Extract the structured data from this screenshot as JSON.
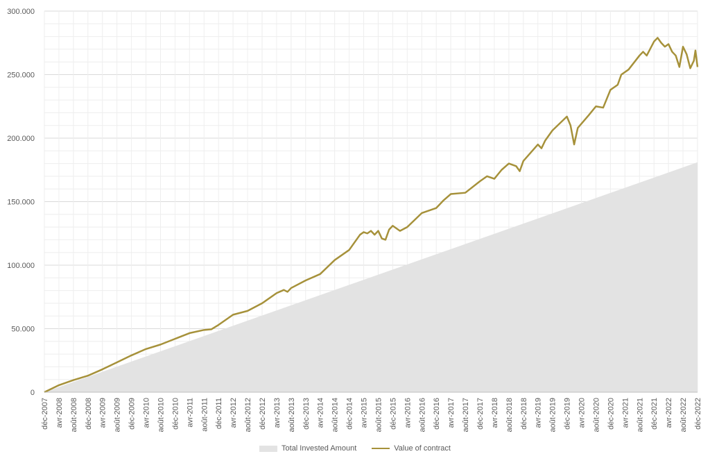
{
  "colors": {
    "area": "#e3e3e3",
    "line": "#a6913a",
    "grid": "#d9d9d9",
    "minor_grid": "#eeeeee",
    "text": "#595959"
  },
  "chart_data": {
    "type": "line",
    "grid": true,
    "legend_placement": "bottom",
    "ylim": [
      0,
      300000
    ],
    "y_ticks": [
      0,
      50000,
      100000,
      150000,
      200000,
      250000,
      300000
    ],
    "y_tick_labels": [
      "0",
      "50.000",
      "100.000",
      "150.000",
      "200.000",
      "250.000",
      "300.000"
    ],
    "x_tick_labels": [
      "déc-2007",
      "avr-2008",
      "août-2008",
      "déc-2008",
      "avr-2009",
      "août-2009",
      "déc-2009",
      "avr-2010",
      "août-2010",
      "déc-2010",
      "avr-2011",
      "août-2011",
      "déc-2011",
      "avr-2012",
      "août-2012",
      "déc-2012",
      "avr-2013",
      "août-2013",
      "déc-2013",
      "avr-2014",
      "août-2014",
      "déc-2014",
      "avr-2015",
      "août-2015",
      "déc-2015",
      "avr-2016",
      "août-2016",
      "déc-2016",
      "avr-2017",
      "août-2017",
      "déc-2017",
      "avr-2018",
      "août-2018",
      "déc-2018",
      "avr-2019",
      "août-2019",
      "déc-2019",
      "avr-2020",
      "août-2020",
      "déc-2020",
      "avr-2021",
      "août-2021",
      "déc-2021",
      "avr-2022",
      "août-2022",
      "déc-2022"
    ],
    "x_start": "2007-12",
    "x_end": "2022-12",
    "series": [
      {
        "name": "Total Invested Amount",
        "kind": "area",
        "points": [
          [
            "2007-12",
            0
          ],
          [
            "2022-12",
            181000
          ]
        ]
      },
      {
        "name": "Value of contract",
        "kind": "line",
        "points": [
          [
            "2007-12",
            0
          ],
          [
            "2008-04",
            5500
          ],
          [
            "2008-08",
            9500
          ],
          [
            "2008-12",
            13000
          ],
          [
            "2009-04",
            18000
          ],
          [
            "2009-08",
            23500
          ],
          [
            "2009-12",
            29000
          ],
          [
            "2010-04",
            34000
          ],
          [
            "2010-08",
            37500
          ],
          [
            "2010-12",
            42000
          ],
          [
            "2011-04",
            46500
          ],
          [
            "2011-08",
            49000
          ],
          [
            "2011-10",
            49500
          ],
          [
            "2011-12",
            53000
          ],
          [
            "2012-04",
            61000
          ],
          [
            "2012-08",
            64000
          ],
          [
            "2012-12",
            70000
          ],
          [
            "2013-04",
            78000
          ],
          [
            "2013-06",
            80500
          ],
          [
            "2013-07",
            79000
          ],
          [
            "2013-08",
            82000
          ],
          [
            "2013-12",
            88000
          ],
          [
            "2014-04",
            93000
          ],
          [
            "2014-08",
            104000
          ],
          [
            "2014-12",
            112000
          ],
          [
            "2015-03",
            124000
          ],
          [
            "2015-04",
            126000
          ],
          [
            "2015-05",
            125000
          ],
          [
            "2015-06",
            127000
          ],
          [
            "2015-07",
            124000
          ],
          [
            "2015-08",
            127000
          ],
          [
            "2015-09",
            121000
          ],
          [
            "2015-10",
            120000
          ],
          [
            "2015-11",
            128000
          ],
          [
            "2015-12",
            131000
          ],
          [
            "2016-02",
            127000
          ],
          [
            "2016-04",
            130000
          ],
          [
            "2016-08",
            141000
          ],
          [
            "2016-12",
            145000
          ],
          [
            "2017-02",
            151000
          ],
          [
            "2017-04",
            156000
          ],
          [
            "2017-08",
            157000
          ],
          [
            "2017-12",
            166000
          ],
          [
            "2018-02",
            170000
          ],
          [
            "2018-04",
            168000
          ],
          [
            "2018-06",
            175000
          ],
          [
            "2018-08",
            180000
          ],
          [
            "2018-10",
            178000
          ],
          [
            "2018-11",
            174000
          ],
          [
            "2018-12",
            182000
          ],
          [
            "2019-04",
            195000
          ],
          [
            "2019-05",
            192000
          ],
          [
            "2019-06",
            198000
          ],
          [
            "2019-08",
            206000
          ],
          [
            "2019-12",
            217000
          ],
          [
            "2020-01",
            210000
          ],
          [
            "2020-02",
            195000
          ],
          [
            "2020-03",
            208000
          ],
          [
            "2020-06",
            218000
          ],
          [
            "2020-08",
            225000
          ],
          [
            "2020-10",
            224000
          ],
          [
            "2020-12",
            238000
          ],
          [
            "2021-02",
            242000
          ],
          [
            "2021-03",
            250000
          ],
          [
            "2021-05",
            254000
          ],
          [
            "2021-08",
            265000
          ],
          [
            "2021-09",
            268000
          ],
          [
            "2021-10",
            265000
          ],
          [
            "2021-12",
            276000
          ],
          [
            "2022-01",
            279000
          ],
          [
            "2022-02",
            275000
          ],
          [
            "2022-03",
            272000
          ],
          [
            "2022-04",
            274000
          ],
          [
            "2022-05",
            268000
          ],
          [
            "2022-06",
            265000
          ],
          [
            "2022-07",
            256000
          ],
          [
            "2022-08",
            272000
          ],
          [
            "2022-09",
            266000
          ],
          [
            "2022-10",
            255000
          ],
          [
            "2022-11",
            261000
          ],
          [
            "2022-12",
            269000
          ],
          [
            "2022-12",
            256000
          ]
        ]
      }
    ]
  },
  "legend": {
    "area_label": "Total Invested Amount",
    "line_label": "Value of contract"
  }
}
